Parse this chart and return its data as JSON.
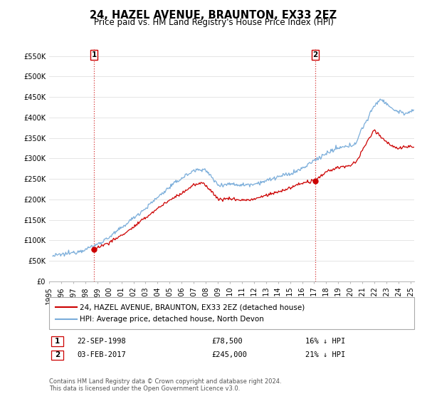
{
  "title": "24, HAZEL AVENUE, BRAUNTON, EX33 2EZ",
  "subtitle": "Price paid vs. HM Land Registry's House Price Index (HPI)",
  "ylabel_ticks": [
    "£0",
    "£50K",
    "£100K",
    "£150K",
    "£200K",
    "£250K",
    "£300K",
    "£350K",
    "£400K",
    "£450K",
    "£500K",
    "£550K"
  ],
  "ytick_values": [
    0,
    50000,
    100000,
    150000,
    200000,
    250000,
    300000,
    350000,
    400000,
    450000,
    500000,
    550000
  ],
  "ylim": [
    0,
    570000
  ],
  "xlim_start": 1995.3,
  "xlim_end": 2025.3,
  "xtick_years": [
    1995,
    1996,
    1997,
    1998,
    1999,
    2000,
    2001,
    2002,
    2003,
    2004,
    2005,
    2006,
    2007,
    2008,
    2009,
    2010,
    2011,
    2012,
    2013,
    2014,
    2015,
    2016,
    2017,
    2018,
    2019,
    2020,
    2021,
    2022,
    2023,
    2024,
    2025
  ],
  "sale1_x": 1998.72,
  "sale1_y": 78500,
  "sale1_label": "1",
  "sale1_date": "22-SEP-1998",
  "sale1_price": "£78,500",
  "sale1_hpi": "16% ↓ HPI",
  "sale2_x": 2017.09,
  "sale2_y": 245000,
  "sale2_label": "2",
  "sale2_date": "03-FEB-2017",
  "sale2_price": "£245,000",
  "sale2_hpi": "21% ↓ HPI",
  "line_color_property": "#cc0000",
  "line_color_hpi": "#7aadda",
  "vline_color": "#cc0000",
  "background_color": "#ffffff",
  "grid_color": "#e0e0e0",
  "legend_label_property": "24, HAZEL AVENUE, BRAUNTON, EX33 2EZ (detached house)",
  "legend_label_hpi": "HPI: Average price, detached house, North Devon",
  "footer": "Contains HM Land Registry data © Crown copyright and database right 2024.\nThis data is licensed under the Open Government Licence v3.0.",
  "title_fontsize": 10.5,
  "subtitle_fontsize": 8.5,
  "tick_fontsize": 7,
  "legend_fontsize": 7.5
}
